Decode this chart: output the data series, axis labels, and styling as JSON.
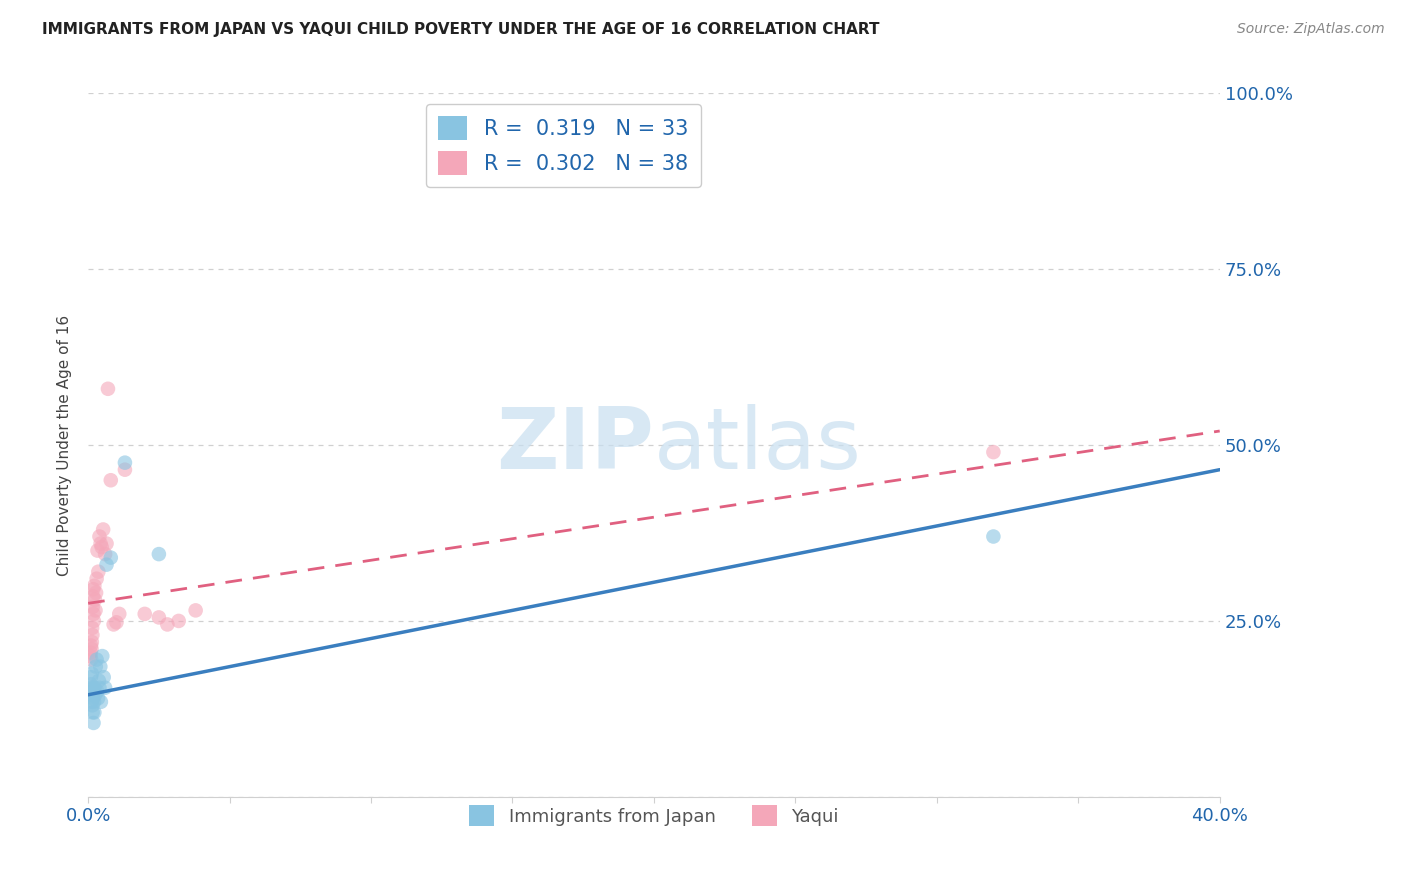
{
  "title": "IMMIGRANTS FROM JAPAN VS YAQUI CHILD POVERTY UNDER THE AGE OF 16 CORRELATION CHART",
  "source": "Source: ZipAtlas.com",
  "ylabel": "Child Poverty Under the Age of 16",
  "legend_blue_r": "0.319",
  "legend_blue_n": "33",
  "legend_pink_r": "0.302",
  "legend_pink_n": "38",
  "legend_label_blue": "Immigrants from Japan",
  "legend_label_pink": "Yaqui",
  "blue_color": "#89c4e1",
  "pink_color": "#f4a7b9",
  "blue_line_color": "#3a7ebf",
  "pink_line_color": "#e06080",
  "background_color": "#ffffff",
  "blue_x": [
    0.0008,
    0.001,
    0.001,
    0.0011,
    0.0012,
    0.0013,
    0.0014,
    0.0015,
    0.0016,
    0.0017,
    0.0018,
    0.0019,
    0.002,
    0.0021,
    0.0022,
    0.0023,
    0.0025,
    0.0027,
    0.003,
    0.0032,
    0.0035,
    0.0038,
    0.004,
    0.0043,
    0.0045,
    0.005,
    0.0055,
    0.006,
    0.0065,
    0.008,
    0.013,
    0.025,
    0.32
  ],
  "blue_y": [
    0.155,
    0.17,
    0.16,
    0.145,
    0.135,
    0.175,
    0.15,
    0.13,
    0.12,
    0.15,
    0.14,
    0.105,
    0.155,
    0.135,
    0.12,
    0.155,
    0.145,
    0.185,
    0.195,
    0.15,
    0.14,
    0.165,
    0.155,
    0.185,
    0.135,
    0.2,
    0.17,
    0.155,
    0.33,
    0.34,
    0.475,
    0.345,
    0.37
  ],
  "pink_x": [
    0.0008,
    0.0009,
    0.001,
    0.0011,
    0.0012,
    0.0013,
    0.0014,
    0.0015,
    0.0016,
    0.0017,
    0.0018,
    0.0019,
    0.002,
    0.0022,
    0.0024,
    0.0026,
    0.0028,
    0.003,
    0.0033,
    0.0036,
    0.004,
    0.0044,
    0.0048,
    0.0053,
    0.006,
    0.0065,
    0.007,
    0.008,
    0.009,
    0.01,
    0.011,
    0.013,
    0.02,
    0.025,
    0.028,
    0.032,
    0.038,
    0.32
  ],
  "pink_y": [
    0.2,
    0.205,
    0.215,
    0.195,
    0.21,
    0.22,
    0.24,
    0.23,
    0.27,
    0.285,
    0.295,
    0.26,
    0.25,
    0.3,
    0.28,
    0.265,
    0.29,
    0.31,
    0.35,
    0.32,
    0.37,
    0.36,
    0.355,
    0.38,
    0.345,
    0.36,
    0.58,
    0.45,
    0.245,
    0.248,
    0.26,
    0.465,
    0.26,
    0.255,
    0.245,
    0.25,
    0.265,
    0.49
  ],
  "blue_line_x0": 0.0,
  "blue_line_x1": 0.4,
  "blue_line_y0": 0.145,
  "blue_line_y1": 0.465,
  "pink_line_x0": 0.0,
  "pink_line_x1": 0.4,
  "pink_line_y0": 0.275,
  "pink_line_y1": 0.52,
  "xlim": [
    0.0,
    0.4
  ],
  "ylim": [
    0.0,
    1.0
  ],
  "ytick_positions": [
    0.0,
    0.25,
    0.5,
    0.75,
    1.0
  ],
  "ytick_labels": [
    "",
    "25.0%",
    "50.0%",
    "75.0%",
    "100.0%"
  ],
  "xtick_positions": [
    0.0,
    0.05,
    0.1,
    0.15,
    0.2,
    0.25,
    0.3,
    0.35,
    0.4
  ],
  "xtick_labels": [
    "0.0%",
    "",
    "",
    "",
    "",
    "",
    "",
    "",
    "40.0%"
  ],
  "grid_color": "#d0d0d0",
  "tick_color": "#2166ac",
  "title_fontsize": 11,
  "axis_fontsize": 13
}
